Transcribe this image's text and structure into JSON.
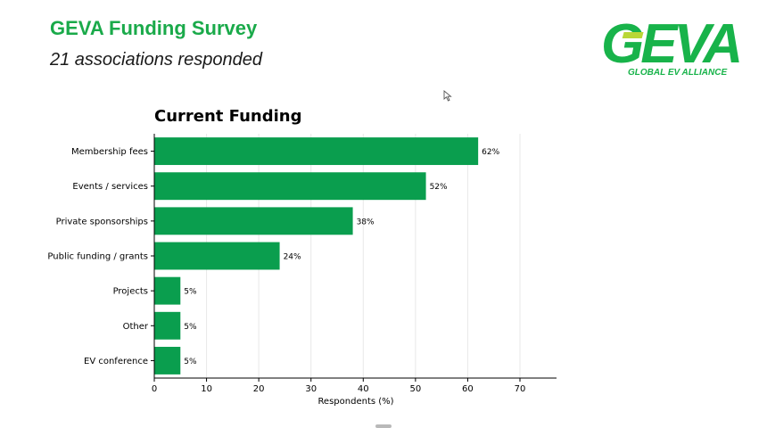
{
  "slide": {
    "title": "GEVA Funding Survey",
    "subtitle": "21 associations responded"
  },
  "logo": {
    "wordmark": "GEVA",
    "tagline": "GLOBAL EV ALLIANCE",
    "color": "#18b34a",
    "accent": "#b9d736"
  },
  "icons": {
    "cursor": "mouse-pointer-icon"
  },
  "chart_data": {
    "type": "bar",
    "orientation": "horizontal",
    "title": "Current Funding",
    "xlabel": "Respondents (%)",
    "ylabel": "",
    "categories": [
      "Membership fees",
      "Events / services",
      "Private sponsorships",
      "Public funding / grants",
      "Projects",
      "Other",
      "EV conference"
    ],
    "values": [
      62,
      52,
      38,
      24,
      5,
      5,
      5
    ],
    "data_labels": [
      "62%",
      "52%",
      "38%",
      "24%",
      "5%",
      "5%",
      "5%"
    ],
    "xlim": [
      0,
      77
    ],
    "xticks": [
      0,
      10,
      20,
      30,
      40,
      50,
      60,
      70
    ],
    "grid": "vertical",
    "bar_color": "#0a9e4e"
  }
}
